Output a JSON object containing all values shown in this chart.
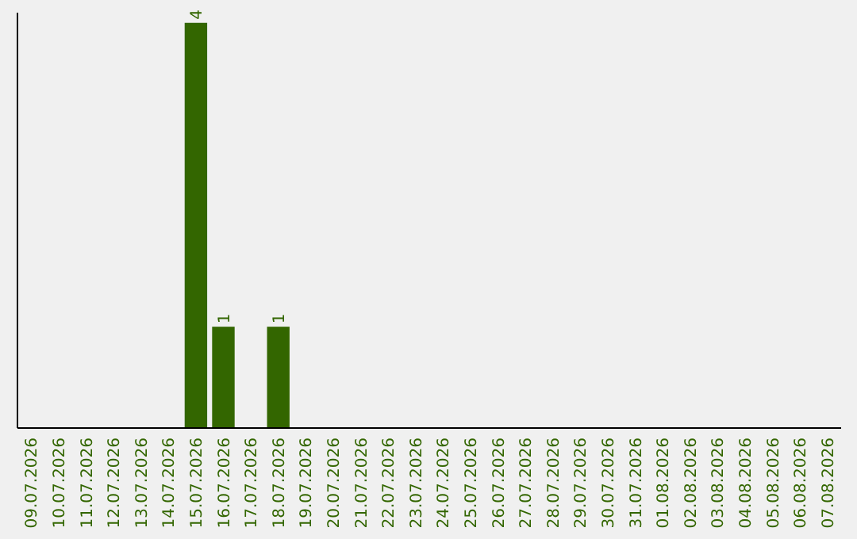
{
  "chart_data": {
    "type": "bar",
    "categories": [
      "09.07.2026",
      "10.07.2026",
      "11.07.2026",
      "12.07.2026",
      "13.07.2026",
      "14.07.2026",
      "15.07.2026",
      "16.07.2026",
      "17.07.2026",
      "18.07.2026",
      "19.07.2026",
      "20.07.2026",
      "21.07.2026",
      "22.07.2026",
      "23.07.2026",
      "24.07.2026",
      "25.07.2026",
      "26.07.2026",
      "27.07.2026",
      "28.07.2026",
      "29.07.2026",
      "30.07.2026",
      "31.07.2026",
      "01.08.2026",
      "02.08.2026",
      "03.08.2026",
      "04.08.2026",
      "05.08.2026",
      "06.08.2026",
      "07.08.2026"
    ],
    "values": [
      0,
      0,
      0,
      0,
      0,
      0,
      4,
      1,
      0,
      1,
      0,
      0,
      0,
      0,
      0,
      0,
      0,
      0,
      0,
      0,
      0,
      0,
      0,
      0,
      0,
      0,
      0,
      0,
      0,
      0
    ],
    "value_labels": [
      null,
      null,
      null,
      null,
      null,
      null,
      "4",
      "1",
      null,
      "1",
      null,
      null,
      null,
      null,
      null,
      null,
      null,
      null,
      null,
      null,
      null,
      null,
      null,
      null,
      null,
      null,
      null,
      null,
      null,
      null
    ],
    "color": "#336600",
    "ylim": [
      0,
      4.1
    ]
  }
}
